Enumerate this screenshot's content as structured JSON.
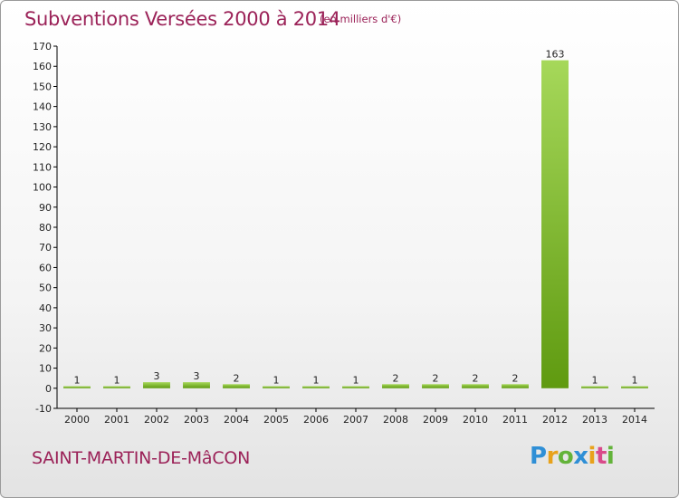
{
  "header": {
    "title": "Subventions Versées 2000 à 2014",
    "unit_note": "(en milliers d'€)"
  },
  "footer": {
    "commune": "SAINT-MARTIN-DE-MâCON",
    "logo": {
      "p": "P",
      "r": "r",
      "o": "o",
      "x": "x",
      "i": "i",
      "t": "t",
      "i2": "i"
    }
  },
  "colors": {
    "title": "#9b2258",
    "bar_light": "#a6d85a",
    "bar_dark": "#5f9a10",
    "axis": "#000000"
  },
  "chart_data": {
    "type": "bar",
    "title": "Subventions Versées 2000 à 2014",
    "subtitle": "(en milliers d'€)",
    "xlabel": "",
    "ylabel": "",
    "categories": [
      "2000",
      "2001",
      "2002",
      "2003",
      "2004",
      "2005",
      "2006",
      "2007",
      "2008",
      "2009",
      "2010",
      "2011",
      "2012",
      "2013",
      "2014"
    ],
    "values": [
      1,
      1,
      3,
      3,
      2,
      1,
      1,
      1,
      2,
      2,
      2,
      2,
      163,
      1,
      1
    ],
    "ylim": [
      -10,
      170
    ],
    "yticks": [
      -10,
      0,
      10,
      20,
      30,
      40,
      50,
      60,
      70,
      80,
      90,
      100,
      110,
      120,
      130,
      140,
      150,
      160,
      170
    ],
    "grid": false,
    "legend": "none"
  }
}
